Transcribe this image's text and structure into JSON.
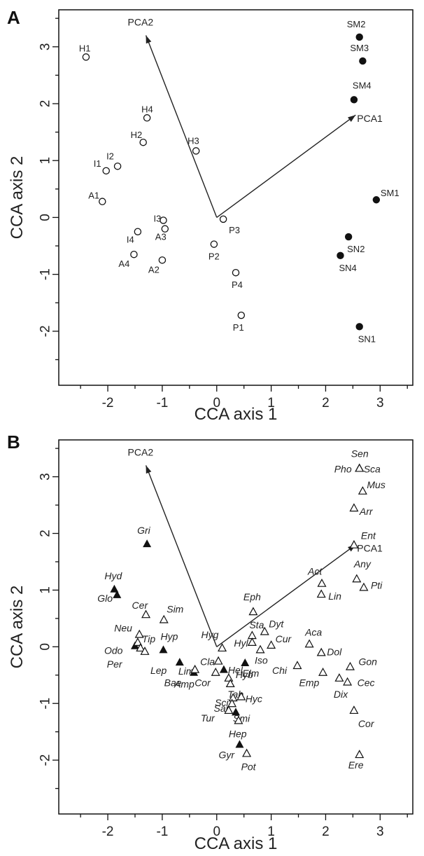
{
  "chart_data": [
    {
      "type": "scatter",
      "panel": "A",
      "xlabel": "CCA axis 1",
      "ylabel": "CCA axis 2",
      "xlim": [
        -2.9,
        3.6
      ],
      "ylim": [
        -2.95,
        3.65
      ],
      "xticks": [
        -2,
        -1,
        0,
        1,
        2,
        3
      ],
      "yticks": [
        -2,
        -1,
        0,
        1,
        2,
        3
      ],
      "grid": false,
      "vectors": [
        {
          "label": "PCA2",
          "x": -1.3,
          "y": 3.2
        },
        {
          "label": "PCA1",
          "x": 2.55,
          "y": 1.8
        }
      ],
      "series": [
        {
          "marker": "open-circle",
          "points": [
            {
              "label": "H1",
              "x": -2.4,
              "y": 2.82
            },
            {
              "label": "H4",
              "x": -1.28,
              "y": 1.75
            },
            {
              "label": "H2",
              "x": -1.35,
              "y": 1.32
            },
            {
              "label": "H3",
              "x": -0.38,
              "y": 1.17
            },
            {
              "label": "I1",
              "x": -2.03,
              "y": 0.82
            },
            {
              "label": "I2",
              "x": -1.82,
              "y": 0.9
            },
            {
              "label": "A1",
              "x": -2.1,
              "y": 0.28
            },
            {
              "label": "I3",
              "x": -0.98,
              "y": -0.05
            },
            {
              "label": "A3",
              "x": -0.95,
              "y": -0.2
            },
            {
              "label": "I4",
              "x": -1.45,
              "y": -0.25
            },
            {
              "label": "A4",
              "x": -1.52,
              "y": -0.65
            },
            {
              "label": "A2",
              "x": -1.0,
              "y": -0.75
            },
            {
              "label": "P3",
              "x": 0.12,
              "y": -0.03
            },
            {
              "label": "P2",
              "x": -0.05,
              "y": -0.47
            },
            {
              "label": "P4",
              "x": 0.35,
              "y": -0.97
            },
            {
              "label": "P1",
              "x": 0.45,
              "y": -1.72
            }
          ]
        },
        {
          "marker": "filled-circle",
          "points": [
            {
              "label": "SM2",
              "x": 2.62,
              "y": 3.17
            },
            {
              "label": "SM3",
              "x": 2.68,
              "y": 2.75
            },
            {
              "label": "SM4",
              "x": 2.52,
              "y": 2.07
            },
            {
              "label": "SM1",
              "x": 2.93,
              "y": 0.31
            },
            {
              "label": "SN2",
              "x": 2.42,
              "y": -0.34
            },
            {
              "label": "SN4",
              "x": 2.27,
              "y": -0.67
            },
            {
              "label": "SN1",
              "x": 2.62,
              "y": -1.92
            }
          ]
        }
      ]
    },
    {
      "type": "scatter",
      "panel": "B",
      "xlabel": "CCA axis 1",
      "ylabel": "CCA axis 2",
      "xlim": [
        -2.9,
        3.6
      ],
      "ylim": [
        -2.95,
        3.65
      ],
      "xticks": [
        -2,
        -1,
        0,
        1,
        2,
        3
      ],
      "yticks": [
        -2,
        -1,
        0,
        1,
        2,
        3
      ],
      "grid": false,
      "vectors": [
        {
          "label": "PCA2",
          "x": -1.3,
          "y": 3.2
        },
        {
          "label": "PCA1",
          "x": 2.55,
          "y": 1.8
        }
      ],
      "series": [
        {
          "marker": "filled-triangle",
          "points": [
            {
              "label": "Gri",
              "x": -1.28,
              "y": 1.82
            },
            {
              "label": "Hyd",
              "x": -1.88,
              "y": 1.02
            },
            {
              "label": "Glo",
              "x": -1.83,
              "y": 0.92
            },
            {
              "label": "Odo",
              "x": -1.5,
              "y": 0.02
            },
            {
              "label": "Hyp",
              "x": -0.98,
              "y": -0.05
            },
            {
              "label": "Lim",
              "x": -0.68,
              "y": -0.27
            },
            {
              "label": "Amp",
              "x": -0.42,
              "y": -0.45
            },
            {
              "label": "Hel",
              "x": 0.13,
              "y": -0.4
            },
            {
              "label": "Elm",
              "x": 0.52,
              "y": -0.28
            },
            {
              "label": "Smi",
              "x": 0.35,
              "y": -1.15
            },
            {
              "label": "Gyr",
              "x": 0.42,
              "y": -1.72
            }
          ]
        },
        {
          "marker": "open-triangle",
          "points": [
            {
              "label": "Sen",
              "x": 2.62,
              "y": 3.15
            },
            {
              "label": "Sca",
              "x": 2.62,
              "y": 3.15
            },
            {
              "label": "Pho",
              "x": 2.62,
              "y": 3.15
            },
            {
              "label": "Mus",
              "x": 2.68,
              "y": 2.75
            },
            {
              "label": "Arr",
              "x": 2.52,
              "y": 2.45
            },
            {
              "label": "Ent",
              "x": 2.52,
              "y": 1.8
            },
            {
              "label": "Act",
              "x": 1.93,
              "y": 1.12
            },
            {
              "label": "Any",
              "x": 2.57,
              "y": 1.2
            },
            {
              "label": "Pti",
              "x": 2.7,
              "y": 1.05
            },
            {
              "label": "Lin",
              "x": 1.92,
              "y": 0.93
            },
            {
              "label": "Eph",
              "x": 0.67,
              "y": 0.62
            },
            {
              "label": "Cer",
              "x": -1.3,
              "y": 0.57
            },
            {
              "label": "Sim",
              "x": -0.97,
              "y": 0.48
            },
            {
              "label": "Neu",
              "x": -1.42,
              "y": 0.22
            },
            {
              "label": "Tip",
              "x": -1.45,
              "y": 0.08
            },
            {
              "label": "Per",
              "x": -1.4,
              "y": -0.02
            },
            {
              "label": "Lep",
              "x": -1.32,
              "y": -0.08
            },
            {
              "label": "Sta",
              "x": 0.65,
              "y": 0.2
            },
            {
              "label": "Dyt",
              "x": 0.88,
              "y": 0.27
            },
            {
              "label": "Hyg",
              "x": 0.1,
              "y": -0.02
            },
            {
              "label": "Hyl",
              "x": 0.65,
              "y": 0.08
            },
            {
              "label": "Cur",
              "x": 1.0,
              "y": 0.03
            },
            {
              "label": "Aca",
              "x": 1.7,
              "y": 0.05
            },
            {
              "label": "Dol",
              "x": 1.92,
              "y": -0.1
            },
            {
              "label": "Iso",
              "x": 0.8,
              "y": -0.05
            },
            {
              "label": "Chi",
              "x": 1.48,
              "y": -0.33
            },
            {
              "label": "Cla",
              "x": 0.03,
              "y": -0.25
            },
            {
              "label": "Cor",
              "x": -0.02,
              "y": -0.45
            },
            {
              "label": "Bae",
              "x": -0.4,
              "y": -0.4
            },
            {
              "label": "Hyb",
              "x": 0.22,
              "y": -0.55
            },
            {
              "label": "Tab",
              "x": 0.25,
              "y": -0.65
            },
            {
              "label": "Emp",
              "x": 1.95,
              "y": -0.45
            },
            {
              "label": "Gon",
              "x": 2.45,
              "y": -0.35
            },
            {
              "label": "Dix",
              "x": 2.25,
              "y": -0.55
            },
            {
              "label": "Cec",
              "x": 2.4,
              "y": -0.62
            },
            {
              "label": "Hyc",
              "x": 0.45,
              "y": -0.88
            },
            {
              "label": "Sci",
              "x": 0.3,
              "y": -0.9
            },
            {
              "label": "Sar",
              "x": 0.28,
              "y": -1.0
            },
            {
              "label": "Tur",
              "x": 0.22,
              "y": -1.12
            },
            {
              "label": "Hep",
              "x": 0.4,
              "y": -1.3
            },
            {
              "label": "Cor",
              "x": 2.52,
              "y": -1.12
            },
            {
              "label": "Pot",
              "x": 0.55,
              "y": -1.88
            },
            {
              "label": "Ere",
              "x": 2.62,
              "y": -1.9
            }
          ]
        }
      ]
    }
  ]
}
